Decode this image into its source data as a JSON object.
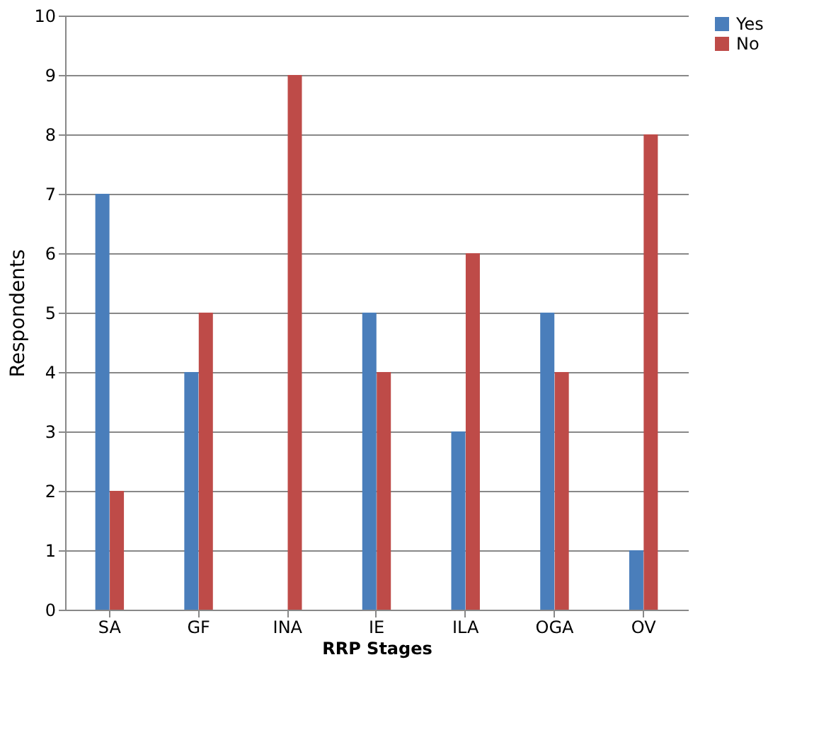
{
  "chart_data": {
    "type": "bar",
    "xlabel": "RRP Stages",
    "ylabel": "Respondents",
    "categories": [
      "SA",
      "GF",
      "INA",
      "IE",
      "ILA",
      "OGA",
      "OV"
    ],
    "series": [
      {
        "name": "Yes",
        "color": "#4a7ebb",
        "values": [
          7,
          4,
          0,
          5,
          3,
          5,
          1
        ]
      },
      {
        "name": "No",
        "color": "#be4b48",
        "values": [
          2,
          5,
          9,
          4,
          6,
          4,
          8
        ]
      }
    ],
    "ylim": [
      0,
      10
    ],
    "yticks": [
      0,
      1,
      2,
      3,
      4,
      5,
      6,
      7,
      8,
      9,
      10
    ],
    "grid": "y",
    "legend": "right"
  }
}
